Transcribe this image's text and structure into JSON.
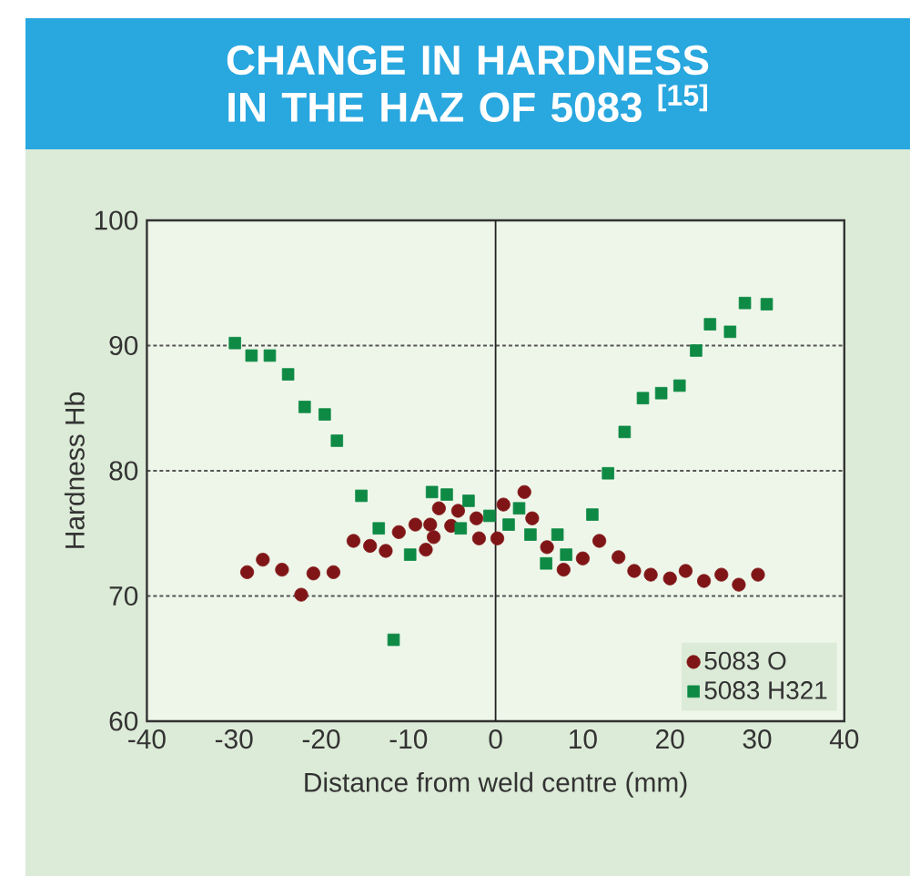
{
  "chart_data": {
    "type": "scatter",
    "title": "CHANGE IN HARDNESS IN THE HAZ OF 5083 $^{[15]}$",
    "xlabel": "Distance from weld centre (mm)",
    "ylabel": "Hardness Hb",
    "xlim": [
      -40,
      40
    ],
    "xticks": [
      -40,
      -30,
      -20,
      -10,
      0,
      10,
      20,
      30,
      40
    ],
    "ylim": [
      60,
      100
    ],
    "yticks": [
      60,
      70,
      80,
      90,
      100
    ],
    "grid": "y",
    "legend": "bottom right",
    "ref_lines": [
      {
        "axis": "x",
        "value": 0,
        "color": "#222222"
      }
    ],
    "series": [
      {
        "name": "5083 O",
        "color": "#801517",
        "marker": "circle",
        "x": [
          -28.5,
          -26.7,
          -24.5,
          -22.3,
          -20.9,
          -18.6,
          -16.3,
          -14.4,
          -12.6,
          -11.1,
          -9.2,
          -8.0,
          -7.5,
          -7.1,
          -6.5,
          -5.1,
          -4.3,
          -2.2,
          -1.9,
          0.2,
          0.9,
          3.3,
          4.2,
          5.9,
          7.8,
          10.0,
          11.9,
          14.1,
          15.9,
          17.8,
          20.0,
          21.8,
          23.9,
          25.9,
          27.9,
          30.1
        ],
        "values": [
          71.9,
          72.9,
          72.1,
          70.1,
          71.8,
          71.9,
          74.4,
          74.0,
          73.6,
          75.1,
          75.7,
          73.7,
          75.7,
          74.7,
          77.0,
          75.6,
          76.8,
          76.2,
          74.6,
          74.6,
          77.3,
          78.3,
          76.2,
          73.9,
          72.1,
          73.0,
          74.4,
          73.1,
          72.0,
          71.7,
          71.4,
          72.0,
          71.2,
          71.7,
          70.9,
          71.7
        ]
      },
      {
        "name": "5083 H321",
        "color": "#0e8a45",
        "marker": "square",
        "x": [
          -29.9,
          -28.0,
          -25.9,
          -23.8,
          -21.9,
          -19.6,
          -18.2,
          -15.4,
          -13.4,
          -11.7,
          -9.8,
          -7.3,
          -5.6,
          -4.0,
          -3.1,
          -0.7,
          1.5,
          2.7,
          4.0,
          5.8,
          7.1,
          8.1,
          11.1,
          12.9,
          14.8,
          16.9,
          19.0,
          21.1,
          23.0,
          24.6,
          26.9,
          28.6,
          31.1
        ],
        "values": [
          90.2,
          89.2,
          89.2,
          87.7,
          85.1,
          84.5,
          82.4,
          78.0,
          75.4,
          66.5,
          73.3,
          78.3,
          78.1,
          75.4,
          77.6,
          76.4,
          75.7,
          77.0,
          74.9,
          72.6,
          74.9,
          73.3,
          76.5,
          79.8,
          83.1,
          85.8,
          86.2,
          86.8,
          89.6,
          91.7,
          91.1,
          93.4,
          93.3
        ]
      }
    ]
  }
}
